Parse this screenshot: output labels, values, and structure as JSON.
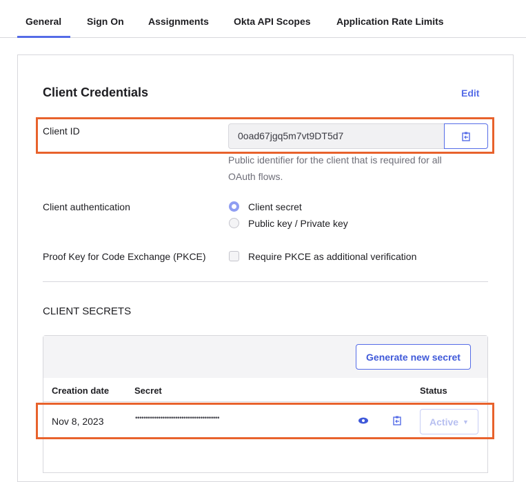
{
  "tabs": [
    {
      "label": "General",
      "active": true
    },
    {
      "label": "Sign On"
    },
    {
      "label": "Assignments"
    },
    {
      "label": "Okta API Scopes"
    },
    {
      "label": "Application Rate Limits"
    }
  ],
  "section": {
    "title": "Client Credentials",
    "edit_label": "Edit"
  },
  "client_id": {
    "label": "Client ID",
    "value": "0oad67jgq5m7vt9DT5d7",
    "help_line1": "Public identifier for the client that is required for all",
    "help_line2": "OAuth flows.",
    "copy_icon": "clipboard-icon"
  },
  "client_auth": {
    "label": "Client authentication",
    "options": [
      {
        "label": "Client secret",
        "selected": true
      },
      {
        "label": "Public key / Private key",
        "selected": false
      }
    ]
  },
  "pkce": {
    "label": "Proof Key for Code Exchange (PKCE)",
    "checkbox_label": "Require PKCE as additional verification",
    "checked": false
  },
  "secrets": {
    "title": "CLIENT SECRETS",
    "generate_label": "Generate new secret",
    "columns": [
      "Creation date",
      "Secret",
      "Status"
    ],
    "rows": [
      {
        "date": "Nov 8, 2023",
        "secret": "••••••••••••••••••••••••••••••••••••••••",
        "status": "Active"
      }
    ]
  },
  "colors": {
    "accent": "#546be7",
    "highlight": "#e8622c"
  }
}
